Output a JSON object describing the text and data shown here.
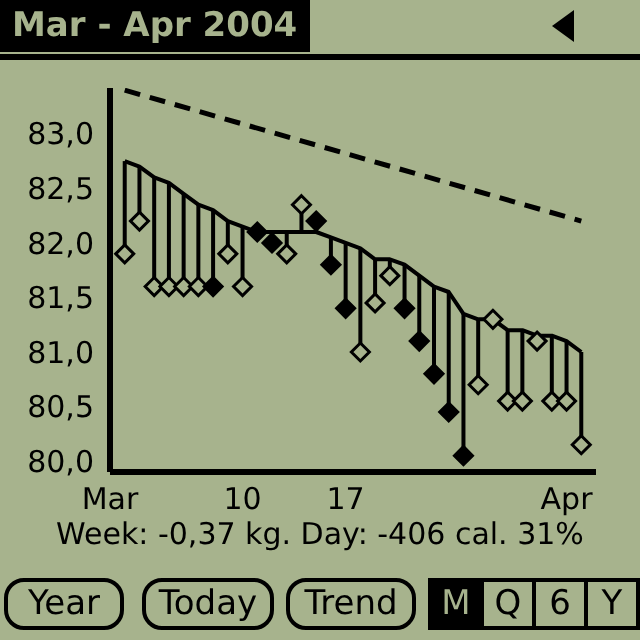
{
  "chart_data": {
    "type": "line",
    "title": "Mar - Apr 2004",
    "x": [
      "2004-03-02",
      "2004-03-03",
      "2004-03-04",
      "2004-03-05",
      "2004-03-06",
      "2004-03-07",
      "2004-03-08",
      "2004-03-09",
      "2004-03-10",
      "2004-03-11",
      "2004-03-12",
      "2004-03-13",
      "2004-03-14",
      "2004-03-15",
      "2004-03-16",
      "2004-03-17",
      "2004-03-18",
      "2004-03-19",
      "2004-03-20",
      "2004-03-21",
      "2004-03-22",
      "2004-03-23",
      "2004-03-24",
      "2004-03-25",
      "2004-03-26",
      "2004-03-27",
      "2004-03-28",
      "2004-03-29",
      "2004-03-30",
      "2004-03-31",
      "2004-04-01",
      "2004-04-02"
    ],
    "series": [
      {
        "color": "#000000",
        "line_style": "solid",
        "marker": "none",
        "values": [
          82.75,
          82.7,
          82.6,
          82.55,
          82.45,
          82.35,
          82.3,
          82.2,
          82.15,
          82.1,
          82.1,
          82.1,
          82.1,
          82.1,
          82.05,
          82.0,
          81.95,
          81.85,
          81.85,
          81.8,
          81.7,
          81.6,
          81.55,
          81.35,
          81.3,
          81.3,
          81.2,
          81.2,
          81.15,
          81.15,
          81.1,
          81.0
        ]
      },
      {
        "type": "scatter",
        "color": "#000000",
        "marker": "diamond",
        "errors": [
          [
            81.9,
            82.75
          ],
          [
            82.2,
            82.7
          ],
          [
            81.6,
            82.6
          ],
          [
            81.6,
            82.55
          ],
          [
            81.6,
            82.45
          ],
          [
            81.6,
            82.35
          ],
          [
            81.6,
            82.3
          ],
          [
            81.9,
            82.2
          ],
          [
            81.6,
            82.15
          ],
          [
            82.1,
            82.1
          ],
          [
            82.0,
            82.1
          ],
          [
            81.9,
            82.1
          ],
          [
            82.1,
            82.35
          ],
          [
            82.1,
            82.2
          ],
          [
            81.8,
            82.05
          ],
          [
            81.4,
            82.0
          ],
          [
            81.0,
            81.95
          ],
          [
            81.45,
            81.85
          ],
          [
            81.7,
            81.85
          ],
          [
            81.4,
            81.8
          ],
          [
            81.1,
            81.7
          ],
          [
            80.8,
            81.6
          ],
          [
            80.45,
            81.55
          ],
          [
            80.05,
            81.35
          ],
          [
            80.7,
            81.3
          ],
          [
            81.3,
            81.3
          ],
          [
            80.55,
            81.2
          ],
          [
            80.55,
            81.2
          ],
          [
            81.1,
            81.15
          ],
          [
            80.55,
            81.15
          ],
          [
            80.55,
            81.1
          ],
          [
            80.15,
            81.0
          ]
        ],
        "colors": [
          "#a7b38d",
          "#a7b38d",
          "#a7b38d",
          "#a7b38d",
          "#a7b38d",
          "#a7b38d",
          "#000000",
          "#a7b38d",
          "#a7b38d",
          "#000000",
          "#000000",
          "#a7b38d",
          "#a7b38d",
          "#000000",
          "#000000",
          "#000000",
          "#a7b38d",
          "#a7b38d",
          "#a7b38d",
          "#000000",
          "#000000",
          "#000000",
          "#000000",
          "#000000",
          "#a7b38d",
          "#a7b38d",
          "#a7b38d",
          "#a7b38d",
          "#a7b38d",
          "#a7b38d",
          "#a7b38d",
          "#a7b38d"
        ],
        "values": [
          81.9,
          82.2,
          81.6,
          81.6,
          81.6,
          81.6,
          81.6,
          81.9,
          81.6,
          82.1,
          82.0,
          81.9,
          82.35,
          82.2,
          81.8,
          81.4,
          81.0,
          81.45,
          81.7,
          81.4,
          81.1,
          80.8,
          80.45,
          80.05,
          80.7,
          81.3,
          80.55,
          80.55,
          81.1,
          80.55,
          80.55,
          80.15
        ]
      },
      {
        "color": "#000000",
        "line_style": "dashed",
        "marker": "none",
        "x": [
          "2004-03-02",
          "2004-04-02"
        ],
        "values": [
          83.4,
          82.2
        ]
      }
    ],
    "xlim": [
      "2004-03-01",
      "2004-04-03"
    ],
    "xticks": [
      {
        "value": "2004-03-01",
        "label": "Mar"
      },
      {
        "value": "2004-03-10",
        "label": "10"
      },
      {
        "value": "2004-03-17",
        "label": "17"
      },
      {
        "value": "2004-04-01",
        "label": "Apr"
      }
    ],
    "ylim": [
      79.9,
      83.42
    ],
    "yticks": [
      {
        "value": 80,
        "label": "80,0"
      },
      {
        "value": 80.5,
        "label": "80,5"
      },
      {
        "value": 81,
        "label": "81,0"
      },
      {
        "value": 81.5,
        "label": "81,5"
      },
      {
        "value": 82,
        "label": "82,0"
      },
      {
        "value": 82.5,
        "label": "82,5"
      },
      {
        "value": 83,
        "label": "83,0"
      }
    ],
    "annotations": [
      "Week: -0,37 kg. Day: -406 cal. 31%",
      "Year",
      "Today",
      "Trend",
      "M",
      "Q",
      "6",
      "Y"
    ]
  }
}
